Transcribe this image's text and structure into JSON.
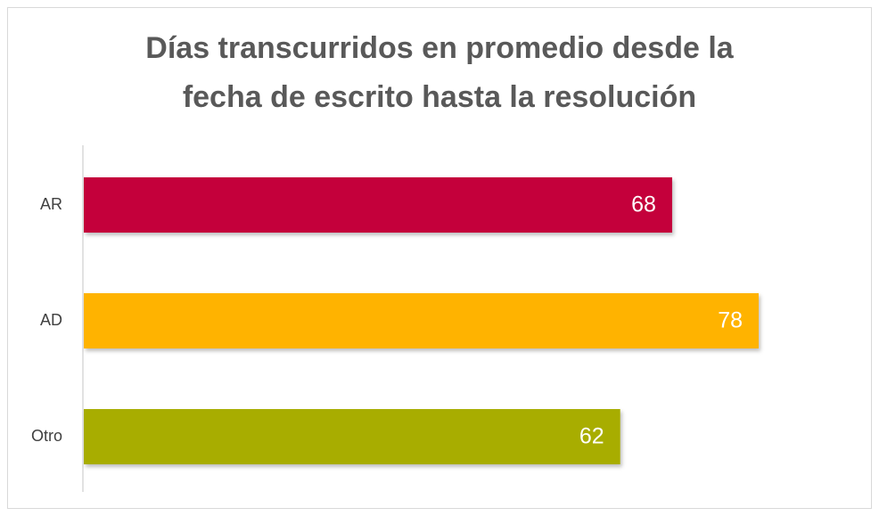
{
  "chart_data": {
    "type": "hbar",
    "title": [
      "Días transcurridos en promedio desde la",
      "fecha de escrito hasta la resolución"
    ],
    "categories": [
      "AR",
      "AD",
      "Otro"
    ],
    "values": [
      68,
      78,
      62
    ],
    "colors": [
      "#c4003a",
      "#ffb300",
      "#a8ad00"
    ]
  }
}
